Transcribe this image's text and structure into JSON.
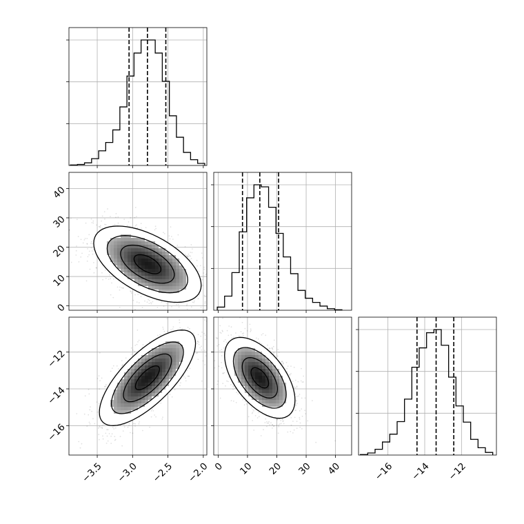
{
  "chart_data": {
    "type": "corner",
    "description_free": true,
    "grid": true,
    "parameters": [
      {
        "range": [
          -3.9,
          -1.95
        ],
        "ticks": [
          -3.5,
          -3.0,
          -2.5,
          -2.0
        ],
        "tick_labels": [
          "−3.5",
          "−3.0",
          "−2.5",
          "−2.0"
        ],
        "quantiles": [
          -3.05,
          -2.79,
          -2.53
        ],
        "hist": {
          "bin_edges": [
            -3.88,
            -3.78,
            -3.68,
            -3.58,
            -3.48,
            -3.38,
            -3.28,
            -3.18,
            -3.08,
            -2.98,
            -2.88,
            -2.78,
            -2.68,
            -2.58,
            -2.48,
            -2.38,
            -2.28,
            -2.18,
            -2.08,
            -1.98
          ],
          "counts": [
            1,
            2,
            5,
            13,
            28,
            44,
            68,
            112,
            171,
            215,
            240,
            240,
            215,
            161,
            95,
            54,
            25,
            11,
            4
          ]
        }
      },
      {
        "range": [
          -1.5,
          45.5
        ],
        "ticks": [
          0,
          10,
          20,
          30,
          40
        ],
        "tick_labels": [
          "0",
          "10",
          "20",
          "30",
          "40"
        ],
        "quantiles": [
          8.3,
          14.2,
          20.6
        ],
        "hist": {
          "bin_edges": [
            -0.3,
            2.2,
            4.7,
            7.2,
            9.7,
            12.2,
            14.7,
            17.2,
            19.7,
            22.2,
            24.7,
            27.2,
            29.7,
            32.2,
            34.7,
            37.2,
            39.7,
            42.2
          ],
          "counts": [
            6,
            27,
            72,
            150,
            215,
            240,
            236,
            197,
            147,
            102,
            70,
            38,
            23,
            15,
            8,
            3,
            1
          ]
        }
      },
      {
        "range": [
          -17.6,
          -10.1
        ],
        "ticks": [
          -16,
          -14,
          -12
        ],
        "tick_labels": [
          "−16",
          "−14",
          "−12"
        ],
        "quantiles": [
          -14.42,
          -13.38,
          -12.42
        ],
        "hist": {
          "bin_edges": [
            -17.5,
            -17.1,
            -16.7,
            -16.3,
            -15.9,
            -15.5,
            -15.1,
            -14.7,
            -14.3,
            -13.9,
            -13.5,
            -13.1,
            -12.7,
            -12.3,
            -11.9,
            -11.5,
            -11.1,
            -10.7,
            -10.3
          ],
          "counts": [
            1,
            4,
            11,
            25,
            40,
            64,
            107,
            168,
            205,
            234,
            240,
            210,
            149,
            94,
            63,
            30,
            14,
            5
          ]
        }
      }
    ],
    "pairs": [
      {
        "row": 1,
        "col": 0,
        "mean": [
          -2.79,
          14.2
        ],
        "sd": [
          0.38,
          6.5
        ],
        "rho": -0.55,
        "contour_sigmas": [
          0.5,
          1.0,
          1.5,
          2.0
        ],
        "peak": [
          -2.8,
          13.5
        ]
      },
      {
        "row": 2,
        "col": 0,
        "mean": [
          -2.79,
          -13.4
        ],
        "sd": [
          0.34,
          1.3
        ],
        "rho": 0.72,
        "contour_sigmas": [
          0.5,
          1.0,
          1.5,
          2.0
        ],
        "peak": [
          -2.82,
          -13.6
        ]
      },
      {
        "row": 2,
        "col": 1,
        "mean": [
          14.2,
          -13.4
        ],
        "sd": [
          6.0,
          1.1
        ],
        "rho": -0.55,
        "contour_sigmas": [
          0.5,
          1.0,
          1.5,
          2.0
        ],
        "peak": [
          13.5,
          -13.2
        ]
      }
    ]
  }
}
